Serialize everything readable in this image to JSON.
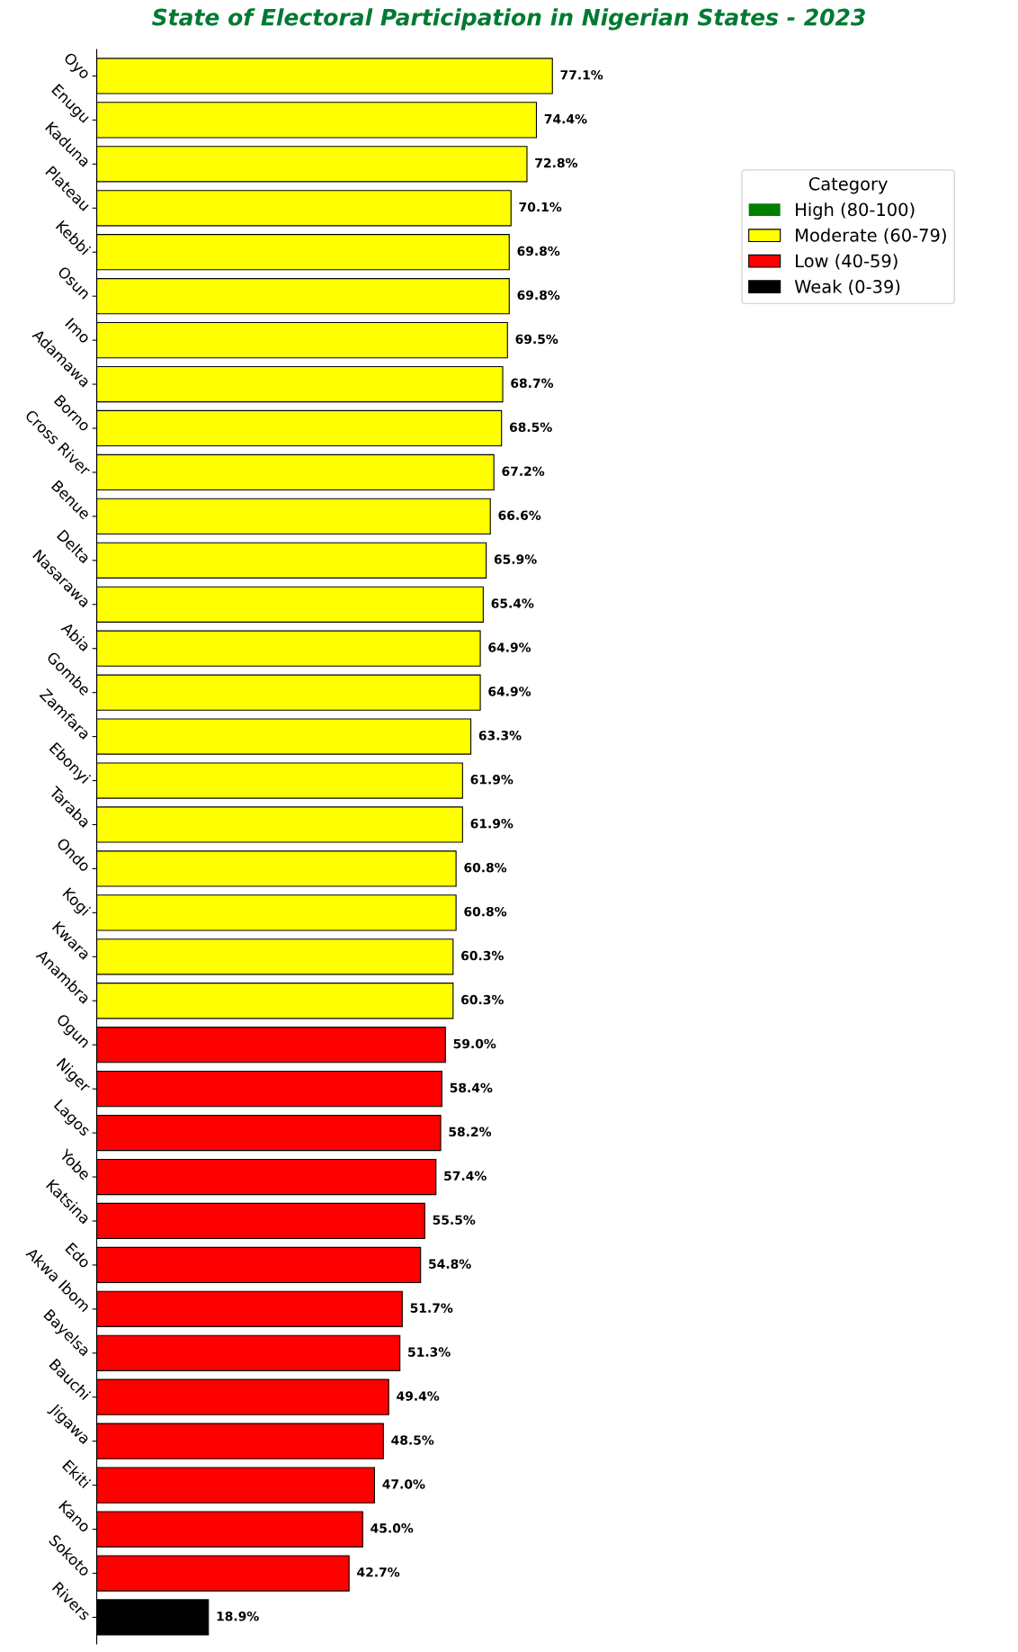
{
  "chart_data": {
    "type": "bar",
    "orientation": "horizontal",
    "title": "State of Electoral Participation in Nigerian States - 2023",
    "categories": [
      "Oyo",
      "Enugu",
      "Kaduna",
      "Plateau",
      "Kebbi",
      "Osun",
      "Imo",
      "Adamawa",
      "Borno",
      "Cross River",
      "Benue",
      "Delta",
      "Nasarawa",
      "Abia",
      "Gombe",
      "Zamfara",
      "Ebonyi",
      "Taraba",
      "Ondo",
      "Kogi",
      "Kwara",
      "Anambra",
      "Ogun",
      "Niger",
      "Lagos",
      "Yobe",
      "Katsina",
      "Edo",
      "Akwa Ibom",
      "Bayelsa",
      "Bauchi",
      "Jigawa",
      "Ekiti",
      "Kano",
      "Sokoto",
      "Rivers"
    ],
    "legend_title": "Category",
    "series": [
      {
        "name": "High (80-100)",
        "color": "#008000",
        "values": [
          null,
          null,
          null,
          null,
          null,
          null,
          null,
          null,
          null,
          null,
          null,
          null,
          null,
          null,
          null,
          null,
          null,
          null,
          null,
          null,
          null,
          null,
          null,
          null,
          null,
          null,
          null,
          null,
          null,
          null,
          null,
          null,
          null,
          null,
          null,
          null
        ]
      },
      {
        "name": "Moderate (60-79)",
        "color": "#ffff00",
        "values": [
          77.1,
          74.4,
          72.8,
          70.1,
          69.8,
          69.8,
          69.5,
          68.7,
          68.5,
          67.2,
          66.6,
          65.9,
          65.4,
          64.9,
          64.9,
          63.3,
          61.9,
          61.9,
          60.8,
          60.8,
          60.3,
          60.3,
          null,
          null,
          null,
          null,
          null,
          null,
          null,
          null,
          null,
          null,
          null,
          null,
          null,
          null
        ],
        "value_labels": [
          "77.1%",
          "74.4%",
          "72.8%",
          "70.1%",
          "69.8%",
          "69.8%",
          "69.5%",
          "68.7%",
          "68.5%",
          "67.2%",
          "66.6%",
          "65.9%",
          "65.4%",
          "64.9%",
          "64.9%",
          "63.3%",
          "61.9%",
          "61.9%",
          "60.8%",
          "60.8%",
          "60.3%",
          "60.3%",
          null,
          null,
          null,
          null,
          null,
          null,
          null,
          null,
          null,
          null,
          null,
          null,
          null,
          null
        ]
      },
      {
        "name": "Low (40-59)",
        "color": "#ff0000",
        "values": [
          null,
          null,
          null,
          null,
          null,
          null,
          null,
          null,
          null,
          null,
          null,
          null,
          null,
          null,
          null,
          null,
          null,
          null,
          null,
          null,
          null,
          null,
          59.0,
          58.4,
          58.2,
          57.4,
          55.5,
          54.8,
          51.7,
          51.3,
          49.4,
          48.5,
          47.0,
          45.0,
          42.7,
          null
        ],
        "value_labels": [
          null,
          null,
          null,
          null,
          null,
          null,
          null,
          null,
          null,
          null,
          null,
          null,
          null,
          null,
          null,
          null,
          null,
          null,
          null,
          null,
          null,
          null,
          "59.0%",
          "58.4%",
          "58.2%",
          "57.4%",
          "55.5%",
          "54.8%",
          "51.7%",
          "51.3%",
          "49.4%",
          "48.5%",
          "47.0%",
          "45.0%",
          "42.7%",
          null
        ]
      },
      {
        "name": "Weak (0-39)",
        "color": "#000000",
        "values": [
          null,
          null,
          null,
          null,
          null,
          null,
          null,
          null,
          null,
          null,
          null,
          null,
          null,
          null,
          null,
          null,
          null,
          null,
          null,
          null,
          null,
          null,
          null,
          null,
          null,
          null,
          null,
          null,
          null,
          null,
          null,
          null,
          null,
          null,
          null,
          18.9
        ],
        "value_labels": [
          null,
          null,
          null,
          null,
          null,
          null,
          null,
          null,
          null,
          null,
          null,
          null,
          null,
          null,
          null,
          null,
          null,
          null,
          null,
          null,
          null,
          null,
          null,
          null,
          null,
          null,
          null,
          null,
          null,
          null,
          null,
          null,
          null,
          null,
          null,
          "18.9%"
        ]
      }
    ],
    "tick_labels": "y",
    "legend": "top right",
    "grid": false
  }
}
